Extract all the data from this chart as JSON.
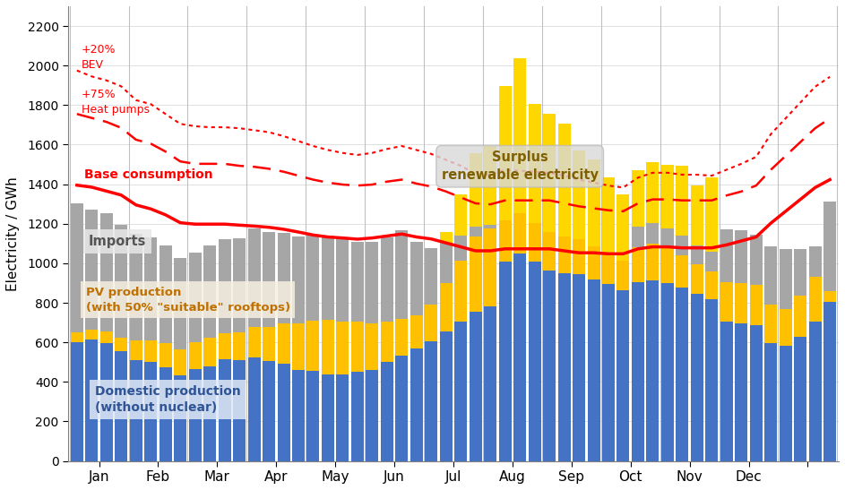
{
  "ylabel": "Electricity / GWh",
  "ylim": [
    0,
    2300
  ],
  "yticks": [
    0,
    200,
    400,
    600,
    800,
    1000,
    1200,
    1400,
    1600,
    1800,
    2000,
    2200
  ],
  "months": [
    "Jan",
    "Feb",
    "Mar",
    "Apr",
    "May",
    "Jun",
    "Jul",
    "Aug",
    "Sep",
    "Oct",
    "Nov",
    "Dec"
  ],
  "month_boundaries": [
    0,
    4,
    8,
    12,
    16,
    20,
    24,
    28,
    32,
    36,
    40,
    44,
    48,
    52
  ],
  "n_bars": 52,
  "domestic_production": [
    600,
    615,
    595,
    555,
    510,
    500,
    475,
    435,
    465,
    480,
    515,
    510,
    525,
    505,
    490,
    460,
    455,
    440,
    440,
    450,
    460,
    500,
    535,
    570,
    605,
    655,
    705,
    755,
    780,
    1010,
    1050,
    1010,
    965,
    950,
    945,
    920,
    895,
    865,
    905,
    915,
    900,
    875,
    845,
    820,
    705,
    695,
    685,
    595,
    585,
    630,
    705,
    805
  ],
  "pv_production": [
    50,
    50,
    60,
    70,
    100,
    110,
    120,
    130,
    135,
    145,
    130,
    140,
    155,
    175,
    205,
    235,
    255,
    275,
    265,
    255,
    235,
    205,
    185,
    165,
    185,
    245,
    310,
    380,
    395,
    205,
    205,
    195,
    195,
    185,
    175,
    165,
    155,
    150,
    175,
    185,
    175,
    165,
    150,
    140,
    200,
    205,
    205,
    195,
    185,
    205,
    225,
    55
  ],
  "imports": [
    655,
    605,
    600,
    570,
    540,
    520,
    495,
    460,
    455,
    465,
    475,
    475,
    495,
    480,
    460,
    440,
    435,
    425,
    415,
    405,
    415,
    425,
    445,
    375,
    285,
    205,
    125,
    50,
    20,
    0,
    0,
    0,
    0,
    0,
    0,
    0,
    0,
    0,
    105,
    105,
    100,
    100,
    95,
    100,
    265,
    265,
    255,
    295,
    300,
    235,
    155,
    450
  ],
  "surplus": [
    0,
    0,
    0,
    0,
    0,
    0,
    0,
    0,
    0,
    0,
    0,
    0,
    0,
    0,
    0,
    0,
    0,
    0,
    0,
    0,
    0,
    0,
    0,
    0,
    0,
    55,
    210,
    370,
    400,
    680,
    780,
    600,
    595,
    570,
    450,
    440,
    385,
    335,
    285,
    305,
    325,
    355,
    305,
    375,
    0,
    0,
    0,
    0,
    0,
    0,
    0,
    0
  ],
  "base_consumption": [
    1395,
    1385,
    1365,
    1345,
    1295,
    1275,
    1245,
    1205,
    1198,
    1198,
    1198,
    1193,
    1188,
    1182,
    1172,
    1158,
    1143,
    1133,
    1128,
    1122,
    1128,
    1138,
    1148,
    1133,
    1123,
    1103,
    1083,
    1063,
    1063,
    1073,
    1073,
    1073,
    1073,
    1063,
    1053,
    1053,
    1048,
    1048,
    1073,
    1083,
    1083,
    1078,
    1078,
    1078,
    1093,
    1113,
    1133,
    1203,
    1263,
    1323,
    1383,
    1423
  ],
  "heat_pumps": [
    1755,
    1735,
    1715,
    1685,
    1625,
    1605,
    1565,
    1515,
    1503,
    1503,
    1503,
    1493,
    1488,
    1478,
    1463,
    1443,
    1423,
    1408,
    1398,
    1393,
    1398,
    1413,
    1423,
    1403,
    1388,
    1363,
    1333,
    1303,
    1298,
    1318,
    1318,
    1318,
    1318,
    1303,
    1288,
    1278,
    1268,
    1263,
    1303,
    1323,
    1323,
    1318,
    1318,
    1318,
    1343,
    1363,
    1393,
    1473,
    1543,
    1613,
    1683,
    1733
  ],
  "bev": [
    1975,
    1945,
    1925,
    1895,
    1825,
    1805,
    1755,
    1705,
    1693,
    1688,
    1688,
    1683,
    1673,
    1663,
    1643,
    1618,
    1593,
    1573,
    1558,
    1548,
    1558,
    1578,
    1593,
    1573,
    1553,
    1523,
    1493,
    1453,
    1448,
    1473,
    1468,
    1463,
    1458,
    1443,
    1423,
    1408,
    1393,
    1383,
    1433,
    1458,
    1458,
    1448,
    1448,
    1443,
    1473,
    1503,
    1538,
    1653,
    1733,
    1813,
    1893,
    1943
  ],
  "color_domestic": "#4472C4",
  "color_pv": "#FFC000",
  "color_imports": "#A6A6A6",
  "color_surplus_bar": "#FFD700",
  "color_base": "#FF0000",
  "color_heat": "#FF0000",
  "color_bev": "#FF0000",
  "color_separator": "#C0C0C0",
  "background_color": "#FFFFFF",
  "label_base": "Base consumption",
  "label_heat": "+75%\nHeat pumps",
  "label_bev": "+20%\nBEV",
  "label_imports": "Imports",
  "label_pv1": "PV production",
  "label_pv2": "(with 50% \"suitable\" rooftops)",
  "label_domestic1": "Domestic production",
  "label_domestic2": "(without nuclear)",
  "label_surplus1": "Surplus",
  "label_surplus2": "renewable electricity"
}
